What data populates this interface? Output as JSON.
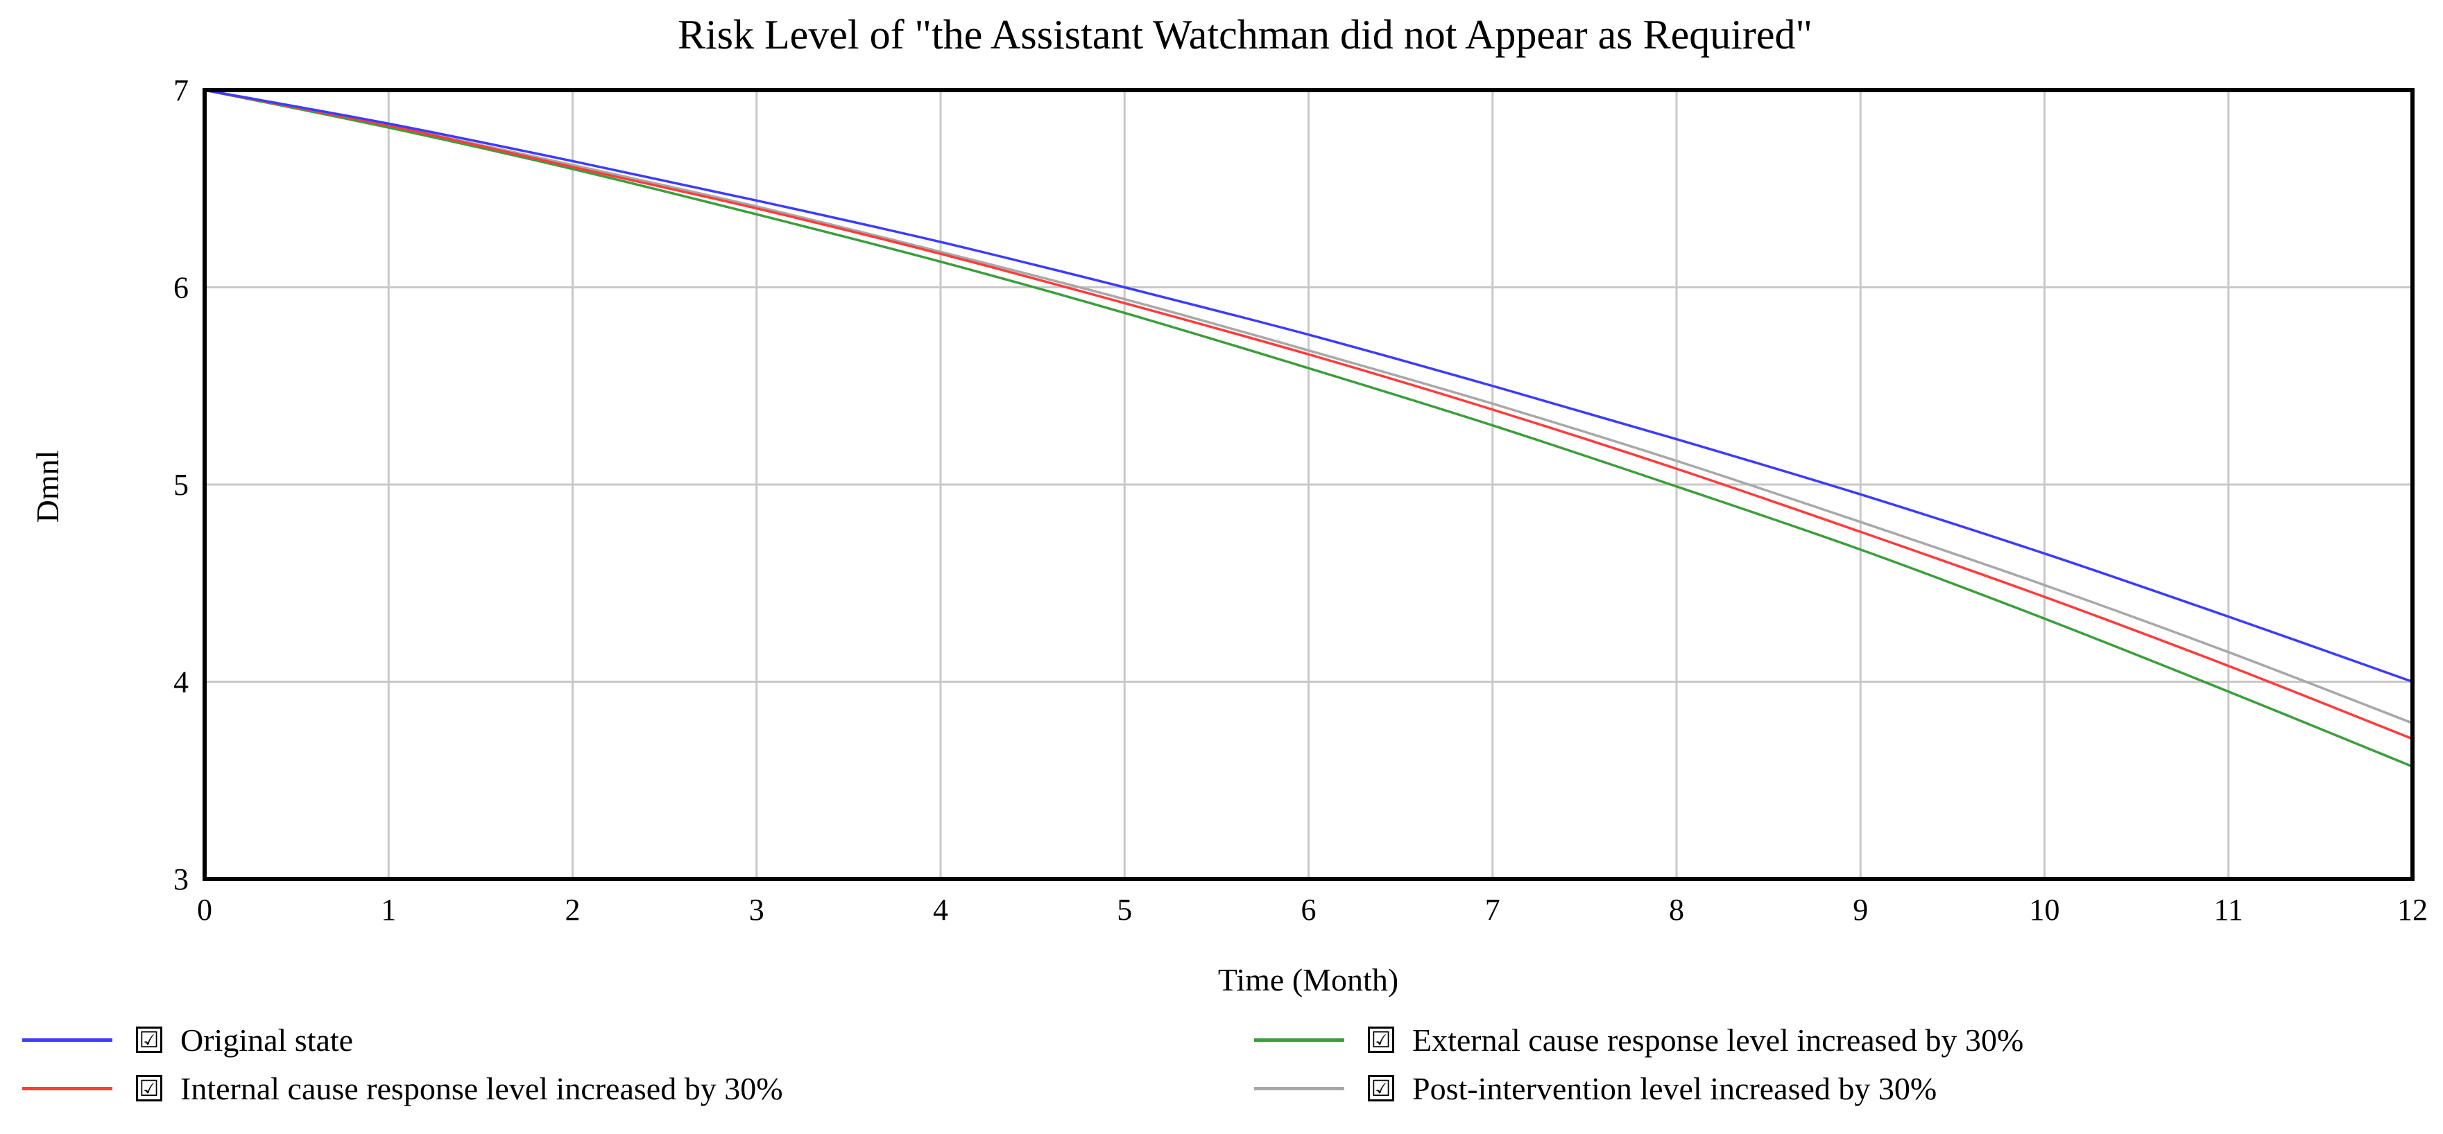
{
  "chart_data": {
    "type": "line",
    "title": "Risk Level of \"the Assistant Watchman did not Appear as Required\"",
    "xlabel": "Time (Month)",
    "ylabel": "Dmnl",
    "xlim": [
      0,
      12
    ],
    "ylim": [
      3,
      7
    ],
    "x_ticks": [
      "0",
      "1",
      "2",
      "3",
      "4",
      "5",
      "6",
      "7",
      "8",
      "9",
      "10",
      "11",
      "12"
    ],
    "y_ticks": [
      "3",
      "4",
      "5",
      "6",
      "7"
    ],
    "grid": true,
    "legend_position": "bottom",
    "x": [
      0,
      1,
      2,
      3,
      4,
      5,
      6,
      7,
      8,
      9,
      10,
      11,
      12
    ],
    "series": [
      {
        "name": "Original state",
        "color": "#3c3cff",
        "checked": "☑",
        "values": [
          7.0,
          6.83,
          6.64,
          6.44,
          6.23,
          6.0,
          5.76,
          5.5,
          5.23,
          4.95,
          4.65,
          4.33,
          4.0
        ]
      },
      {
        "name": "Internal cause response level increased by 30%",
        "color": "#ff3c3c",
        "checked": "☑",
        "values": [
          7.0,
          6.82,
          6.61,
          6.4,
          6.17,
          5.92,
          5.66,
          5.38,
          5.08,
          4.76,
          4.43,
          4.08,
          3.71
        ]
      },
      {
        "name": "External cause response level increased by 30%",
        "color": "#3c9e3c",
        "checked": "☑",
        "values": [
          7.0,
          6.81,
          6.6,
          6.37,
          6.13,
          5.87,
          5.59,
          5.3,
          4.99,
          4.67,
          4.32,
          3.95,
          3.57
        ]
      },
      {
        "name": "Post-intervention level increased by 30%",
        "color": "#a8a8a8",
        "checked": "☑",
        "values": [
          7.0,
          6.82,
          6.62,
          6.41,
          6.18,
          5.94,
          5.68,
          5.41,
          5.12,
          4.81,
          4.49,
          4.15,
          3.79
        ]
      }
    ]
  }
}
